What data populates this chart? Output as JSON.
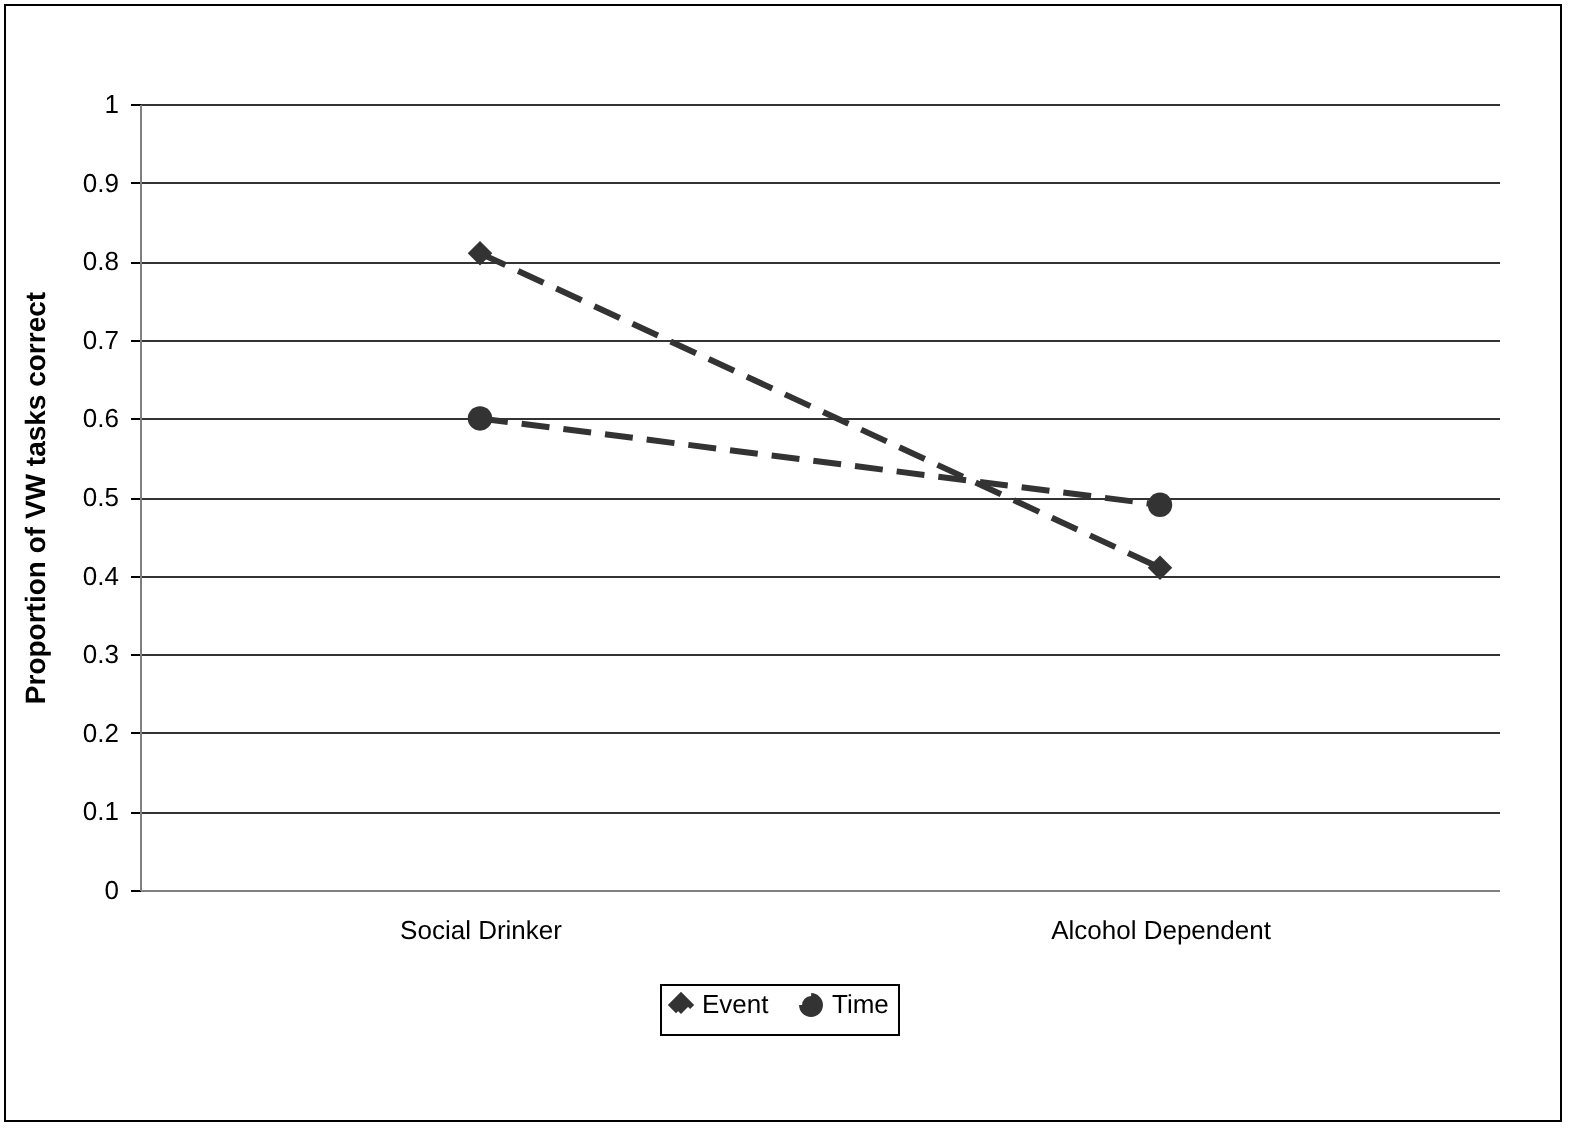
{
  "chart_data": {
    "type": "line",
    "ylabel": "Proportion of VW tasks correct",
    "categories": [
      "Social Drinker",
      "Alcohol Dependent"
    ],
    "series": [
      {
        "name": "Event",
        "color": "#333333",
        "values": [
          0.81,
          0.41
        ],
        "marker": "diamond",
        "line_style": "dashed"
      },
      {
        "name": "Time",
        "color": "#333333",
        "values": [
          0.6,
          0.49
        ],
        "marker": "circle",
        "line_style": "dashed"
      }
    ],
    "ylim": [
      0,
      1
    ],
    "yticks": [
      0,
      0.1,
      0.2,
      0.3,
      0.4,
      0.5,
      0.6,
      0.7,
      0.8,
      0.9,
      1
    ],
    "grid": "y",
    "legend": "bottom"
  }
}
